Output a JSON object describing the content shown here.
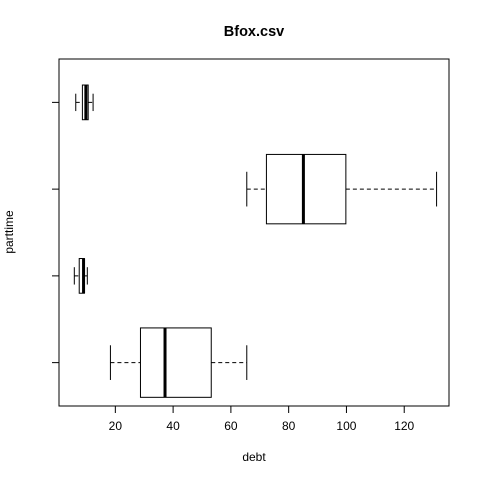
{
  "chart_data": {
    "type": "boxplot",
    "title": "Bfox.csv",
    "xlabel": "debt",
    "ylabel": "parttime",
    "xlim": [
      0.5,
      135.5
    ],
    "x_ticks": [
      20,
      40,
      60,
      80,
      100,
      120
    ],
    "orientation": "horizontal",
    "grid": false,
    "boxes": [
      {
        "whisker_low": 18.3,
        "q1": 28.7,
        "median": 37.2,
        "q3": 53.2,
        "whisker_high": 65.5
      },
      {
        "whisker_low": 5.8,
        "q1": 7.5,
        "median": 9.0,
        "q3": 9.3,
        "whisker_high": 10.3
      },
      {
        "whisker_low": 65.5,
        "q1": 72.3,
        "median": 85.1,
        "q3": 99.8,
        "whisker_high": 131.2
      },
      {
        "whisker_low": 6.3,
        "q1": 8.6,
        "median": 9.8,
        "q3": 10.6,
        "whisker_high": 12.3
      }
    ],
    "colors": {
      "stroke": "#000000",
      "box_fill": "#ffffff"
    }
  }
}
